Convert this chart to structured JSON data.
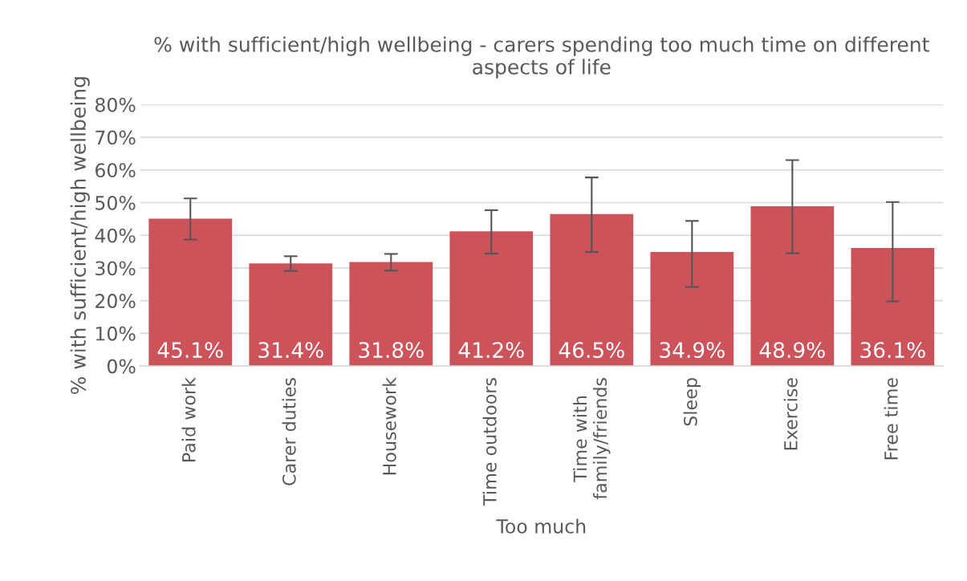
{
  "chart_data": {
    "type": "bar",
    "title": "% with sufficient/high wellbeing - carers spending too much time on different aspects of life",
    "xlabel": "Too much",
    "ylabel": "% with sufficient/high wellbeing",
    "categories": [
      "Paid work",
      "Carer duties",
      "Housework",
      "Time outdoors",
      "Time with family/friends",
      "Sleep",
      "Exercise",
      "Free time"
    ],
    "values": [
      45.1,
      31.4,
      31.8,
      41.2,
      46.5,
      34.9,
      48.9,
      36.1
    ],
    "value_labels": [
      "45.1%",
      "31.4%",
      "31.8%",
      "41.2%",
      "46.5%",
      "34.9%",
      "48.9%",
      "36.1%"
    ],
    "errors": [
      [
        38.7,
        51.3
      ],
      [
        29.1,
        33.6
      ],
      [
        29.2,
        34.3
      ],
      [
        34.4,
        47.7
      ],
      [
        34.9,
        57.7
      ],
      [
        24.2,
        44.4
      ],
      [
        34.5,
        63.0
      ],
      [
        19.8,
        50.2
      ]
    ],
    "color": "#cd535b",
    "ylim": [
      0,
      80
    ],
    "yticks": [
      {
        "value": 0,
        "label": "0%"
      },
      {
        "value": 10,
        "label": "10%"
      },
      {
        "value": 20,
        "label": "20%"
      },
      {
        "value": 30,
        "label": "30%"
      },
      {
        "value": 40,
        "label": "40%"
      },
      {
        "value": 50,
        "label": "50%"
      },
      {
        "value": 60,
        "label": "60%"
      },
      {
        "value": 70,
        "label": "70%"
      },
      {
        "value": 80,
        "label": "80%"
      }
    ],
    "grid": "y"
  }
}
